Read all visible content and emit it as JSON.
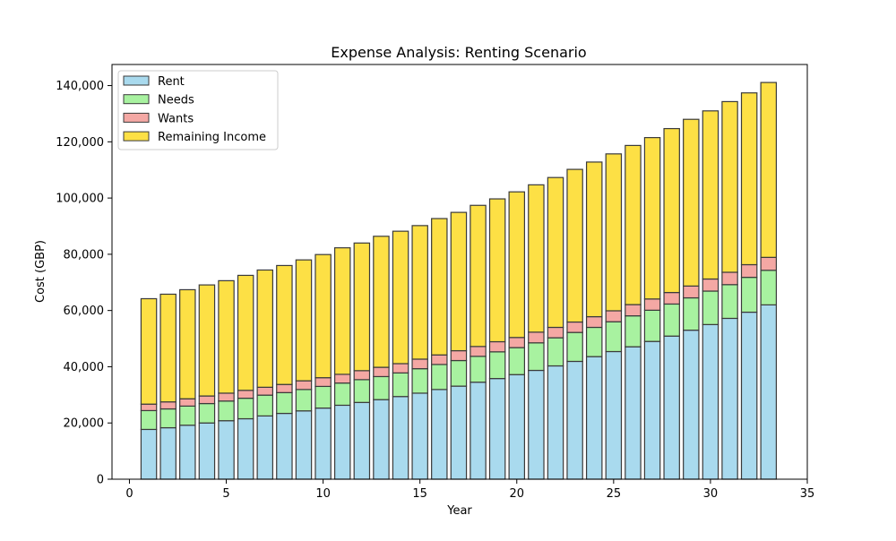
{
  "chart_data": {
    "type": "bar",
    "stacked": true,
    "title": "Expense Analysis: Renting Scenario",
    "xlabel": "Year",
    "ylabel": "Cost (GBP)",
    "xlim": [
      -0.9,
      35
    ],
    "ylim": [
      0,
      147500
    ],
    "x_ticks": [
      0,
      5,
      10,
      15,
      20,
      25,
      30,
      35
    ],
    "y_ticks": [
      0,
      20000,
      40000,
      60000,
      80000,
      100000,
      120000,
      140000
    ],
    "y_tick_labels": [
      "0",
      "20,000",
      "40,000",
      "60,000",
      "80,000",
      "100,000",
      "120,000",
      "140,000"
    ],
    "x_tick_labels": [
      "0",
      "5",
      "10",
      "15",
      "20",
      "25",
      "30",
      "35"
    ],
    "legend_position": "top-left",
    "grid": false,
    "x": [
      1,
      2,
      3,
      4,
      5,
      6,
      7,
      8,
      9,
      10,
      11,
      12,
      13,
      14,
      15,
      16,
      17,
      18,
      19,
      20,
      21,
      22,
      23,
      24,
      25,
      26,
      27,
      28,
      29,
      30,
      31,
      32,
      33
    ],
    "series": [
      {
        "name": "Rent",
        "color": "#a9daee",
        "values": [
          17700,
          18300,
          19200,
          20000,
          20800,
          21500,
          22500,
          23400,
          24300,
          25300,
          26300,
          27300,
          28300,
          29400,
          30600,
          31900,
          33100,
          34500,
          35800,
          37200,
          38700,
          40300,
          41900,
          43600,
          45400,
          47100,
          49000,
          50900,
          53000,
          55000,
          57200,
          59400,
          62000
        ]
      },
      {
        "name": "Needs",
        "color": "#a8f2a0",
        "values": [
          6700,
          6700,
          6800,
          6900,
          7000,
          7300,
          7400,
          7400,
          7600,
          7700,
          7900,
          8100,
          8200,
          8400,
          8700,
          8900,
          9100,
          9200,
          9500,
          9600,
          9800,
          10000,
          10300,
          10400,
          10600,
          11000,
          11100,
          11400,
          11500,
          11900,
          12000,
          12400,
          12300
        ]
      },
      {
        "name": "Wants",
        "color": "#f4a8a4",
        "values": [
          2300,
          2500,
          2600,
          2700,
          2800,
          2800,
          2800,
          2900,
          3100,
          3100,
          3100,
          3200,
          3300,
          3300,
          3400,
          3400,
          3500,
          3500,
          3600,
          3600,
          3800,
          3700,
          3700,
          3800,
          3900,
          4000,
          4000,
          4100,
          4200,
          4300,
          4400,
          4500,
          4600
        ]
      },
      {
        "name": "Remaining Income",
        "color": "#fde045",
        "values": [
          37500,
          38300,
          38800,
          39500,
          40000,
          40900,
          41700,
          42300,
          43000,
          43800,
          45000,
          45400,
          46600,
          47100,
          47500,
          48500,
          49200,
          50200,
          50800,
          51800,
          52400,
          53300,
          54300,
          55000,
          55800,
          56600,
          57400,
          58300,
          59300,
          59800,
          60700,
          61100,
          62200
        ]
      }
    ]
  }
}
